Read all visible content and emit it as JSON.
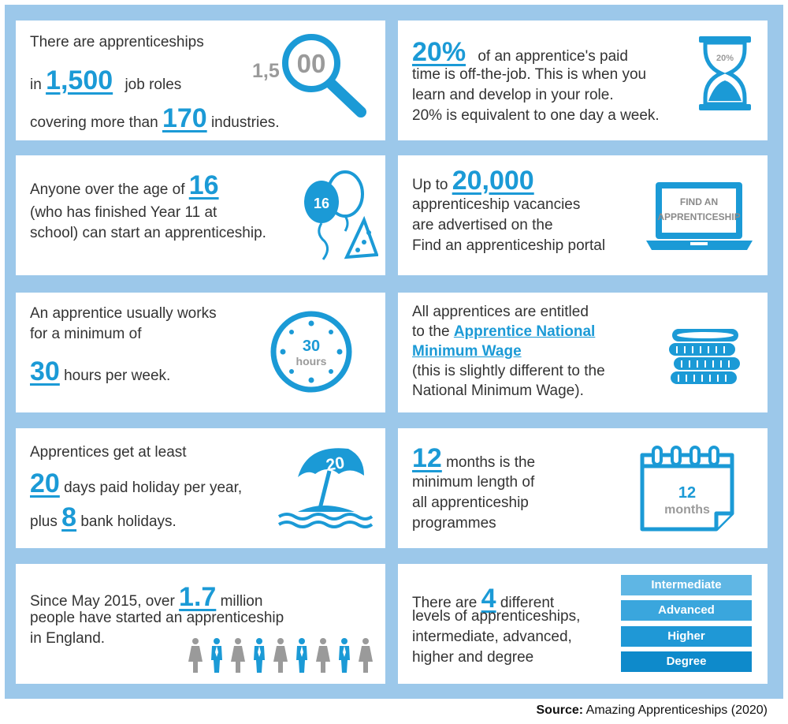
{
  "cards": {
    "roles": {
      "line1": "There are apprenticeships",
      "in": "in",
      "num_roles": "1,500",
      "roles_label": "job roles",
      "covering": "covering more than",
      "num_industries": "170",
      "industries_label": "industries.",
      "icon_prefix": "1,5",
      "icon_lens": "00"
    },
    "offjob": {
      "percent": "20%",
      "line1": "of an apprentice's paid",
      "line2": "time is off-the-job. This is when you",
      "line3": "learn and develop in your role.",
      "line4": "20% is equivalent to one day a week.",
      "icon_label": "20%"
    },
    "age": {
      "line1": "Anyone over the age of",
      "num": "16",
      "line2": "(who has finished Year 11 at",
      "line3": "school) can start an apprenticeship.",
      "icon_label": "16"
    },
    "vacancies": {
      "upto": "Up to",
      "num": "20,000",
      "line1": "apprenticeship vacancies",
      "line2": "are advertised on the",
      "line3": "Find an apprenticeship portal",
      "screen_line1": "FIND AN",
      "screen_line2": "APPRENTICESHIP"
    },
    "hours": {
      "line1": "An apprentice usually works",
      "line2": "for a minimum of",
      "num": "30",
      "line3": "hours per week.",
      "icon_num": "30",
      "icon_unit": "hours"
    },
    "wage": {
      "line1": "All apprentices are entitled",
      "to_the": "to the",
      "link1": "Apprentice National",
      "link2": "Minimum Wage",
      "line3": "(this is slightly different to the",
      "line4": "National Minimum Wage)."
    },
    "holiday": {
      "line1": "Apprentices get at least",
      "num_days": "20",
      "days_label": "days paid holiday per year,",
      "plus": "plus",
      "num_bank": "8",
      "bank_label": "bank holidays.",
      "icon_label": "20"
    },
    "months": {
      "num": "12",
      "line1": "months is the",
      "line2": "minimum length of",
      "line3": "all apprenticeship",
      "line4": "programmes",
      "icon_num": "12",
      "icon_unit": "months"
    },
    "started": {
      "line1_pre": "Since May 2015, over",
      "num": "1.7",
      "line1_post": "million",
      "line2": "people have started an apprenticeship",
      "line3": "in England."
    },
    "levels": {
      "pre": "There are",
      "num": "4",
      "line1": "different",
      "line2": "levels of apprenticeships,",
      "line3": "intermediate, advanced,",
      "line4": "higher and degree",
      "items": [
        "Intermediate",
        "Advanced",
        "Higher",
        "Degree"
      ]
    }
  },
  "level_colors": [
    "#5fb6e4",
    "#3aa6dd",
    "#1f98d6",
    "#0e8acb"
  ],
  "accent_color": "#1b9ad6",
  "frame_color": "#9cc8ea",
  "source": {
    "label": "Source:",
    "text": "Amazing Apprenticeships (2020)"
  }
}
